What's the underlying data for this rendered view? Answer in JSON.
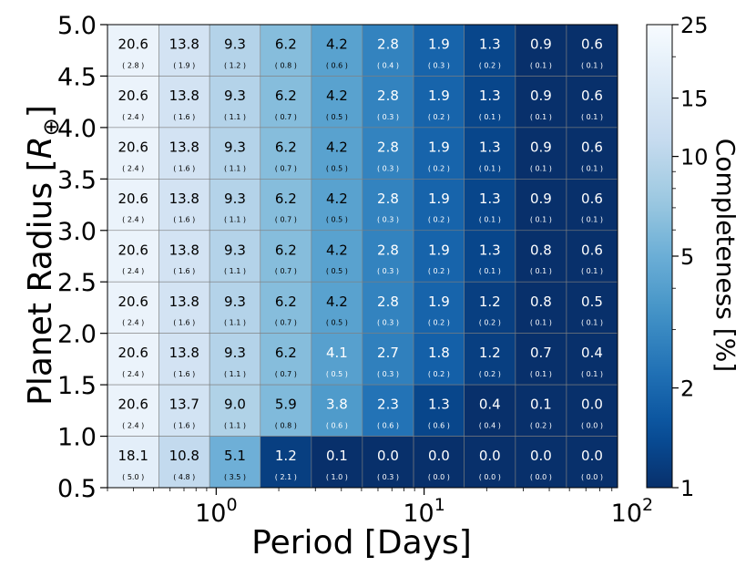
{
  "chart_data": {
    "type": "heatmap",
    "title": "",
    "xlabel": "Period [Days]",
    "ylabel": "Planet Radius [R⊕]",
    "colorbar_label": "Completeness [%]",
    "x_scale": "log",
    "x_bin_edges": [
      0.3,
      0.53,
      0.93,
      1.63,
      2.87,
      5.05,
      8.9,
      15.6,
      27.5,
      48.4,
      85.2
    ],
    "x_ticks": [
      {
        "value": 1,
        "base": "10",
        "exp": "0"
      },
      {
        "value": 10,
        "base": "10",
        "exp": "1"
      },
      {
        "value": 100,
        "base": "10",
        "exp": "2"
      }
    ],
    "y_bin_edges": [
      0.5,
      1.0,
      1.5,
      2.0,
      2.5,
      3.0,
      3.5,
      4.0,
      4.5,
      5.0
    ],
    "y_ticks": [
      "0.5",
      "1.0",
      "1.5",
      "2.0",
      "2.5",
      "3.0",
      "3.5",
      "4.0",
      "4.5",
      "5.0"
    ],
    "colorbar": {
      "scale": "log",
      "range": [
        1,
        25
      ],
      "ticks": [
        "1",
        "2",
        "5",
        "10",
        "15",
        "25"
      ],
      "colors": [
        "#08306b",
        "#08519c",
        "#2171b5",
        "#4292c6",
        "#6baed6",
        "#9ecae1",
        "#c6dbef",
        "#deebf7",
        "#f7fbff"
      ]
    },
    "rows_top_to_bottom": [
      {
        "radius_bin": "4.5-5.0",
        "values": [
          "20.6",
          "13.8",
          "9.3",
          "6.2",
          "4.2",
          "2.8",
          "1.9",
          "1.3",
          "0.9",
          "0.6"
        ],
        "errors": [
          "( 2.8 )",
          "( 1.9 )",
          "( 1.2 )",
          "( 0.8 )",
          "( 0.6 )",
          "( 0.4 )",
          "( 0.3 )",
          "( 0.2 )",
          "( 0.1 )",
          "( 0.1 )"
        ]
      },
      {
        "radius_bin": "4.0-4.5",
        "values": [
          "20.6",
          "13.8",
          "9.3",
          "6.2",
          "4.2",
          "2.8",
          "1.9",
          "1.3",
          "0.9",
          "0.6"
        ],
        "errors": [
          "( 2.4 )",
          "( 1.6 )",
          "( 1.1 )",
          "( 0.7 )",
          "( 0.5 )",
          "( 0.3 )",
          "( 0.2 )",
          "( 0.1 )",
          "( 0.1 )",
          "( 0.1 )"
        ]
      },
      {
        "radius_bin": "3.5-4.0",
        "values": [
          "20.6",
          "13.8",
          "9.3",
          "6.2",
          "4.2",
          "2.8",
          "1.9",
          "1.3",
          "0.9",
          "0.6"
        ],
        "errors": [
          "( 2.4 )",
          "( 1.6 )",
          "( 1.1 )",
          "( 0.7 )",
          "( 0.5 )",
          "( 0.3 )",
          "( 0.2 )",
          "( 0.1 )",
          "( 0.1 )",
          "( 0.1 )"
        ]
      },
      {
        "radius_bin": "3.0-3.5",
        "values": [
          "20.6",
          "13.8",
          "9.3",
          "6.2",
          "4.2",
          "2.8",
          "1.9",
          "1.3",
          "0.9",
          "0.6"
        ],
        "errors": [
          "( 2.4 )",
          "( 1.6 )",
          "( 1.1 )",
          "( 0.7 )",
          "( 0.5 )",
          "( 0.3 )",
          "( 0.2 )",
          "( 0.1 )",
          "( 0.1 )",
          "( 0.1 )"
        ]
      },
      {
        "radius_bin": "2.5-3.0",
        "values": [
          "20.6",
          "13.8",
          "9.3",
          "6.2",
          "4.2",
          "2.8",
          "1.9",
          "1.3",
          "0.8",
          "0.6"
        ],
        "errors": [
          "( 2.4 )",
          "( 1.6 )",
          "( 1.1 )",
          "( 0.7 )",
          "( 0.5 )",
          "( 0.3 )",
          "( 0.2 )",
          "( 0.1 )",
          "( 0.1 )",
          "( 0.1 )"
        ]
      },
      {
        "radius_bin": "2.0-2.5",
        "values": [
          "20.6",
          "13.8",
          "9.3",
          "6.2",
          "4.2",
          "2.8",
          "1.9",
          "1.2",
          "0.8",
          "0.5"
        ],
        "errors": [
          "( 2.4 )",
          "( 1.6 )",
          "( 1.1 )",
          "( 0.7 )",
          "( 0.5 )",
          "( 0.3 )",
          "( 0.2 )",
          "( 0.2 )",
          "( 0.1 )",
          "( 0.1 )"
        ]
      },
      {
        "radius_bin": "1.5-2.0",
        "values": [
          "20.6",
          "13.8",
          "9.3",
          "6.2",
          "4.1",
          "2.7",
          "1.8",
          "1.2",
          "0.7",
          "0.4"
        ],
        "errors": [
          "( 2.4 )",
          "( 1.6 )",
          "( 1.1 )",
          "( 0.7 )",
          "( 0.5 )",
          "( 0.3 )",
          "( 0.2 )",
          "( 0.2 )",
          "( 0.1 )",
          "( 0.1 )"
        ]
      },
      {
        "radius_bin": "1.0-1.5",
        "values": [
          "20.6",
          "13.7",
          "9.0",
          "5.9",
          "3.8",
          "2.3",
          "1.3",
          "0.4",
          "0.1",
          "0.0"
        ],
        "errors": [
          "( 2.4 )",
          "( 1.6 )",
          "( 1.1 )",
          "( 0.8 )",
          "( 0.6 )",
          "( 0.6 )",
          "( 0.6 )",
          "( 0.4 )",
          "( 0.2 )",
          "( 0.0 )"
        ]
      },
      {
        "radius_bin": "0.5-1.0",
        "values": [
          "18.1",
          "10.8",
          "5.1",
          "1.2",
          "0.1",
          "0.0",
          "0.0",
          "0.0",
          "0.0",
          "0.0"
        ],
        "errors": [
          "( 5.0 )",
          "( 4.8 )",
          "( 3.5 )",
          "( 2.1 )",
          "( 1.0 )",
          "( 0.3 )",
          "( 0.0 )",
          "( 0.0 )",
          "( 0.0 )",
          "( 0.0 )"
        ]
      }
    ]
  }
}
